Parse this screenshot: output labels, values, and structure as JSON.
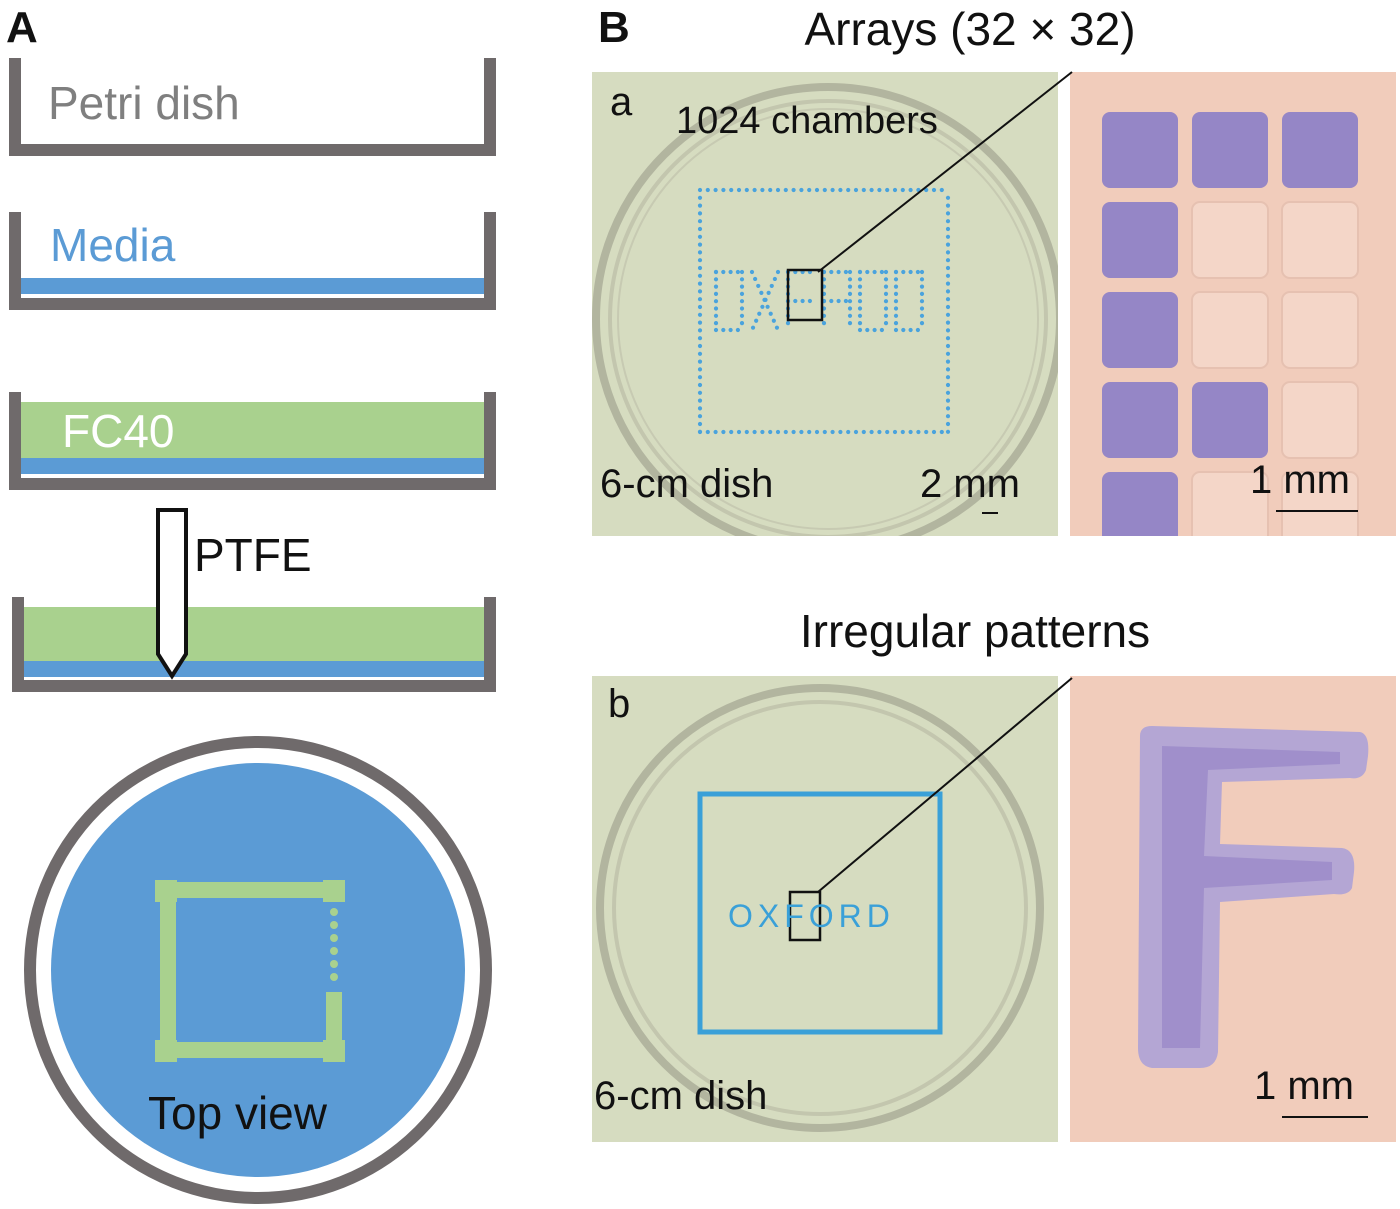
{
  "panel_a": {
    "letter": "A",
    "petri_label": "Petri dish",
    "media_label": "Media",
    "fc40_label": "FC40",
    "ptfe_label": "PTFE",
    "topview_label": "Top view"
  },
  "panel_b": {
    "letter": "B",
    "heading_arrays": "Arrays (32 × 32)",
    "heading_irregular": "Irregular patterns",
    "sub_a": {
      "letter": "a",
      "chambers_label": "1024 chambers",
      "word": "OXFORD",
      "dish_label": "6-cm dish",
      "scale_label": "2 mm",
      "zoom_scale_label": "1 mm"
    },
    "sub_b": {
      "letter": "b",
      "word": "OXFORD",
      "dish_label": "6-cm dish",
      "zoom_scale_label": "1 mm"
    }
  },
  "colors": {
    "dish_wall": "#6f6a6b",
    "media_blue": "#5b9bd5",
    "fc40_green": "#a9d18e",
    "photo_green_bg": "#d6dcc0",
    "photo_pink_bg": "#f1ccbb",
    "chamber_purple": "#8579c8",
    "pattern_cyan": "#3aa0d8"
  }
}
